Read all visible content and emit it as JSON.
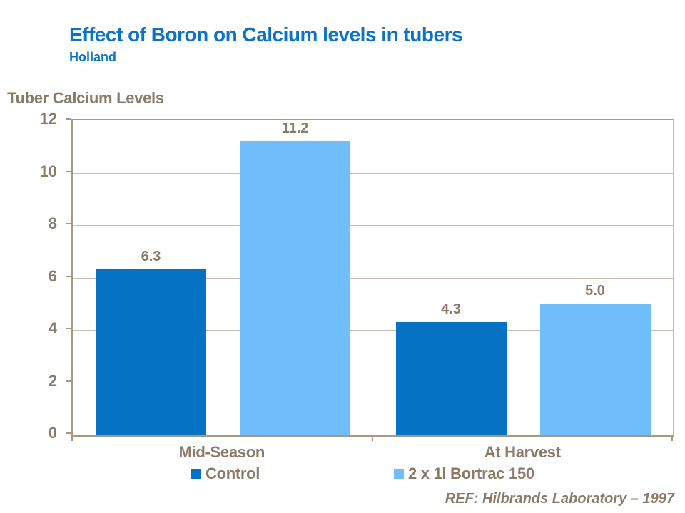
{
  "chart_data": {
    "type": "bar",
    "title": "Effect of Boron on Calcium levels in tubers",
    "subtitle": "Holland",
    "axis_title": "Tuber Calcium Levels",
    "categories": [
      "Mid-Season",
      "At Harvest"
    ],
    "series": [
      {
        "name": "Control",
        "color": "#0572C3",
        "values": [
          6.3,
          4.3
        ]
      },
      {
        "name": "2 x 1l Bortrac 150",
        "color": "#6FBEF9",
        "values": [
          11.2,
          5.0
        ]
      }
    ],
    "value_labels": [
      [
        "6.3",
        "4.3"
      ],
      [
        "11.2",
        "5.0"
      ]
    ],
    "ylim": [
      0,
      12
    ],
    "yticks": [
      0,
      2,
      4,
      6,
      8,
      10,
      12
    ],
    "grid": true,
    "legend_position": "bottom"
  },
  "footer": {
    "ref": "REF: Hilbrands Laboratory – 1997"
  },
  "colors": {
    "title_blue": "#0B72C5",
    "text_brown": "#8A7A68",
    "gridline": "#C6BCAE",
    "axis_line": "#A79884"
  }
}
